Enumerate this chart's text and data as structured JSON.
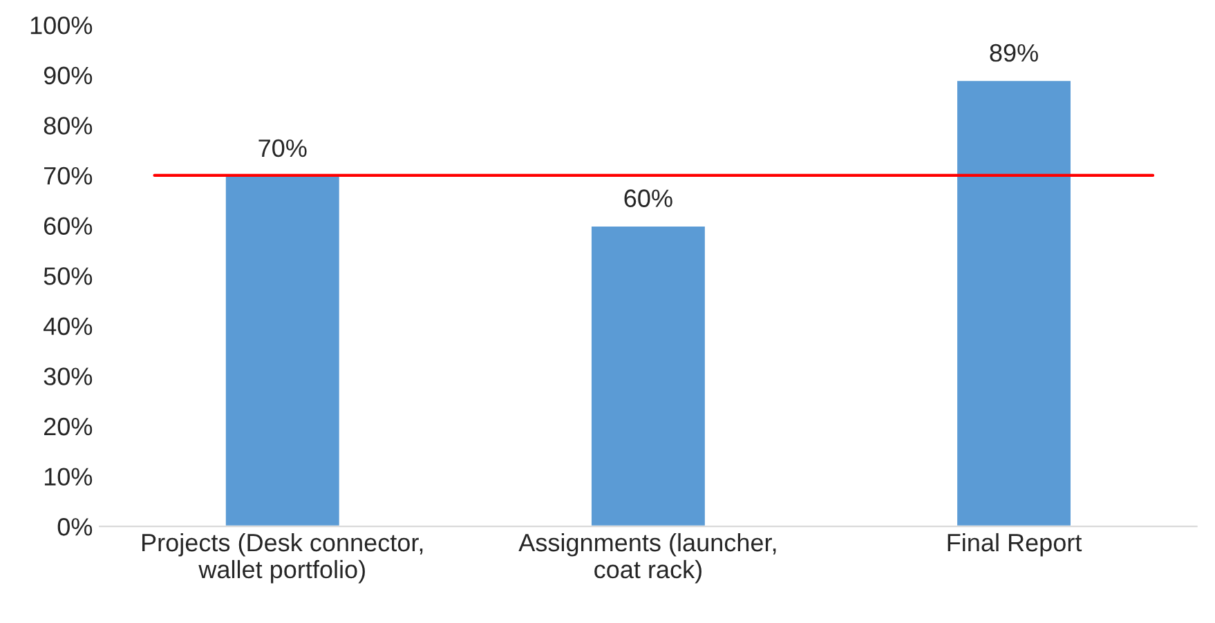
{
  "chart_data": {
    "type": "bar",
    "categories": [
      "Projects (Desk connector,\nwallet portfolio)",
      "Assignments (launcher,\ncoat rack)",
      "Final Report"
    ],
    "values": [
      70,
      60,
      89
    ],
    "color": "#5b9bd5",
    "value_labels": [
      "70%",
      "60%",
      "89%"
    ],
    "ylim": [
      0,
      100
    ],
    "yticks": [
      {
        "value": 0,
        "label": "0%"
      },
      {
        "value": 10,
        "label": "10%"
      },
      {
        "value": 20,
        "label": "20%"
      },
      {
        "value": 30,
        "label": "30%"
      },
      {
        "value": 40,
        "label": "40%"
      },
      {
        "value": 50,
        "label": "50%"
      },
      {
        "value": 60,
        "label": "60%"
      },
      {
        "value": 70,
        "label": "70%"
      },
      {
        "value": 80,
        "label": "80%"
      },
      {
        "value": 90,
        "label": "90%"
      },
      {
        "value": 100,
        "label": "100%"
      }
    ],
    "ref_lines": [
      {
        "axis": "y",
        "value": 70,
        "color": "#ff0000",
        "line_style": "solid"
      }
    ],
    "grid": false,
    "legend": false
  }
}
